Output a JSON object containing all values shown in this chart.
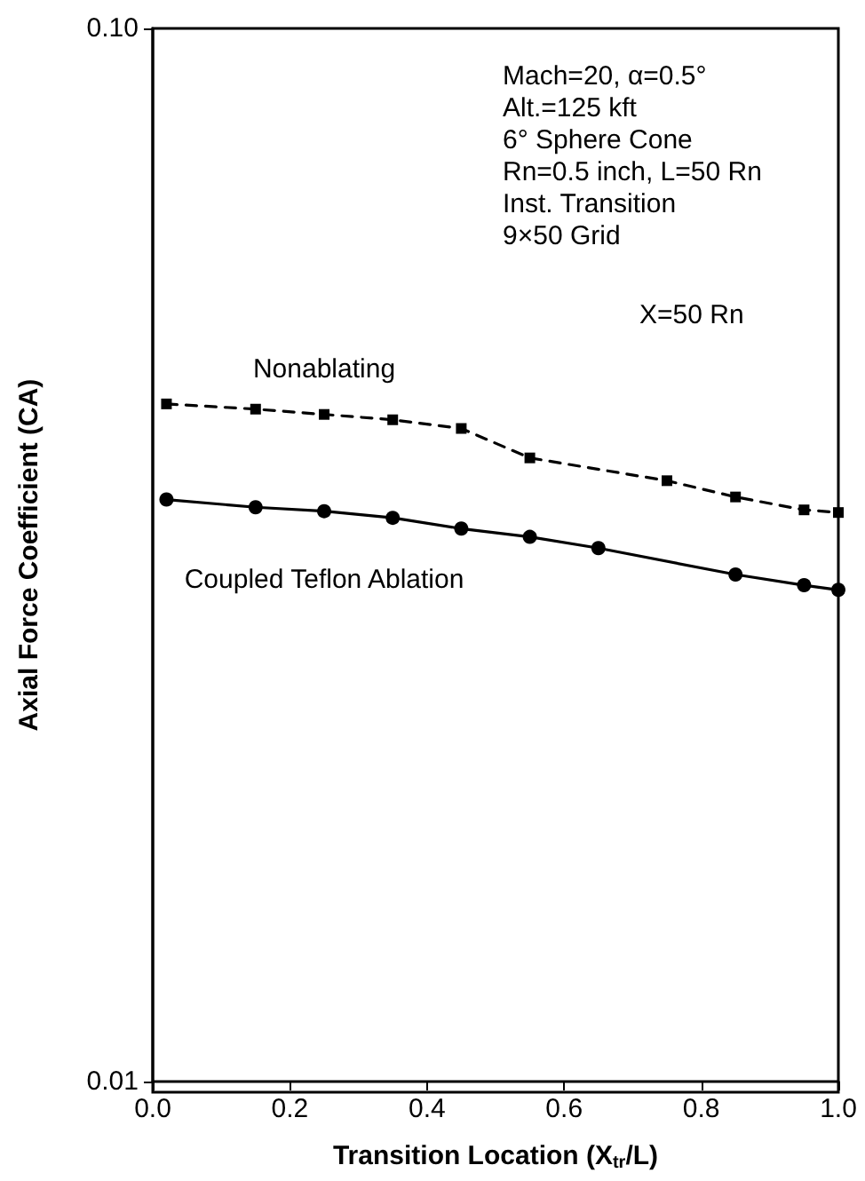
{
  "chart_data": {
    "type": "line",
    "xlabel": "Transition Location (X$_{tr}$/L)",
    "ylabel": "Axial Force Coefficient (CA)",
    "log": "y",
    "xlim": [
      0,
      1
    ],
    "xticks": [
      {
        "value": 0,
        "label": "0.0"
      },
      0.2,
      0.4,
      0.6,
      0.8,
      {
        "value": 1,
        "label": "1.0"
      }
    ],
    "ylim": [
      0.01,
      0.1
    ],
    "yticks": [
      0.01,
      {
        "value": 0.1,
        "label": "0.10"
      }
    ],
    "annotations": [
      "Mach=20, α=0.5°",
      "Alt.=125 kft",
      "6° Sphere Cone",
      "Rn=0.5 inch, L=50 Rn",
      "Inst. Transition",
      "9×50 Grid",
      "X=50 Rn"
    ],
    "series": [
      {
        "name": "Nonablating",
        "color": "#000000",
        "marker": "square",
        "line_style": "dashed",
        "x": [
          0.02,
          0.15,
          0.25,
          0.35,
          0.45,
          0.55,
          0.75,
          0.85,
          0.95,
          1.0
        ],
        "values": [
          0.044,
          0.0435,
          0.043,
          0.0425,
          0.0417,
          0.0391,
          0.0372,
          0.0359,
          0.0349,
          0.0347
        ]
      },
      {
        "name": "Coupled Teflon Ablation",
        "color": "#000000",
        "marker": "circle",
        "line_style": "solid",
        "x": [
          0.02,
          0.15,
          0.25,
          0.35,
          0.45,
          0.55,
          0.65,
          0.85,
          0.95,
          1.0
        ],
        "values": [
          0.0357,
          0.0351,
          0.0348,
          0.0343,
          0.0335,
          0.0329,
          0.0321,
          0.0303,
          0.0296,
          0.0293
        ]
      }
    ]
  }
}
